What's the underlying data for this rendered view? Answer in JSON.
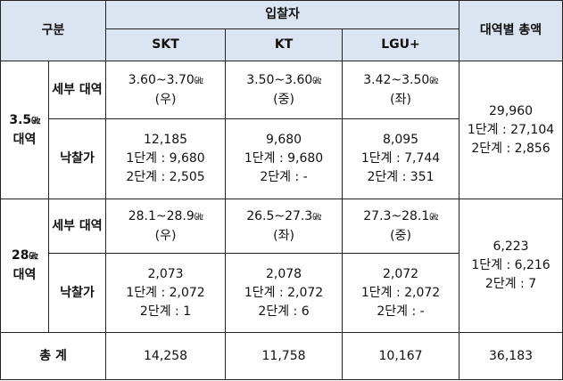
{
  "header": {
    "category": "구분",
    "bidders_title": "입찰자",
    "bidders": [
      "SKT",
      "KT",
      "LGU+"
    ],
    "band_total": "대역별 총액"
  },
  "bands": [
    {
      "band_label": "3.5",
      "band_unit": "㎓",
      "band_word": "대역",
      "detail_label": "세부 대역",
      "price_label": "낙찰가",
      "cells": [
        {
          "range": "3.60~3.70",
          "unit": "㎓",
          "position": "(우)",
          "price": "12,185",
          "stage1": "1단계 : 9,680",
          "stage2": "2단계 : 2,505"
        },
        {
          "range": "3.50~3.60",
          "unit": "㎓",
          "position": "(중)",
          "price": "9,680",
          "stage1": "1단계 : 9,680",
          "stage2": "2단계 : -"
        },
        {
          "range": "3.42~3.50",
          "unit": "㎓",
          "position": "(좌)",
          "price": "8,095",
          "stage1": "1단계 : 7,744",
          "stage2": "2단계 : 351"
        }
      ],
      "total": {
        "sum": "29,960",
        "stage1": "1단계 : 27,104",
        "stage2": "2단계 : 2,856"
      }
    },
    {
      "band_label": "28",
      "band_unit": "㎓",
      "band_word": "대역",
      "detail_label": "세부 대역",
      "price_label": "낙찰가",
      "cells": [
        {
          "range": "28.1~28.9",
          "unit": "㎓",
          "position": "(우)",
          "price": "2,073",
          "stage1": "1단계 : 2,072",
          "stage2": "2단계 : 1"
        },
        {
          "range": "26.5~27.3",
          "unit": "㎓",
          "position": "(좌)",
          "price": "2,078",
          "stage1": "1단계 : 2,072",
          "stage2": "2단계 : 6"
        },
        {
          "range": "27.3~28.1",
          "unit": "㎓",
          "position": "(중)",
          "price": "2,072",
          "stage1": "1단계 : 2,072",
          "stage2": "2단계 : -"
        }
      ],
      "total": {
        "sum": "6,223",
        "stage1": "1단계 : 6,216",
        "stage2": "2단계 : 7"
      }
    }
  ],
  "grand_total": {
    "label": "총 계",
    "values": [
      "14,258",
      "11,758",
      "10,167"
    ],
    "sum": "36,183"
  }
}
